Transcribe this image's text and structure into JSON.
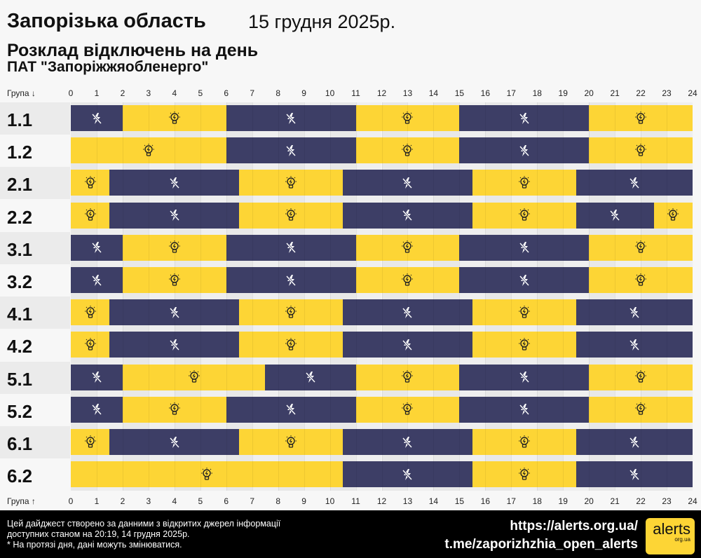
{
  "header": {
    "title": "Запорізька область",
    "date": "15 грудня 2025р.",
    "subtitle": "Розклад відключень на день",
    "company": "ПАТ \"Запоріжжяобленерго\""
  },
  "chart_data": {
    "type": "table",
    "axis_label_top": "Група ↓",
    "axis_label_bottom": "Група ↑",
    "x_ticks": [
      "0",
      "1",
      "2",
      "3",
      "4",
      "5",
      "6",
      "7",
      "8",
      "9",
      "10",
      "11",
      "12",
      "13",
      "14",
      "15",
      "16",
      "17",
      "18",
      "19",
      "20",
      "21",
      "22",
      "23",
      "24"
    ],
    "xlim": [
      0,
      24
    ],
    "colors": {
      "off": "#3d3e66",
      "on": "#fdd535"
    },
    "legend_icons": {
      "off": "lightning-slash-icon",
      "on": "lightbulb-icon"
    },
    "groups": [
      {
        "name": "1.1",
        "segments": [
          [
            "off",
            0,
            2
          ],
          [
            "on",
            2,
            6
          ],
          [
            "off",
            6,
            11
          ],
          [
            "on",
            11,
            15
          ],
          [
            "off",
            15,
            20
          ],
          [
            "on",
            20,
            24
          ]
        ]
      },
      {
        "name": "1.2",
        "segments": [
          [
            "on",
            0,
            6
          ],
          [
            "off",
            6,
            11
          ],
          [
            "on",
            11,
            15
          ],
          [
            "off",
            15,
            20
          ],
          [
            "on",
            20,
            24
          ]
        ]
      },
      {
        "name": "2.1",
        "segments": [
          [
            "on",
            0,
            1.5
          ],
          [
            "off",
            1.5,
            6.5
          ],
          [
            "on",
            6.5,
            10.5
          ],
          [
            "off",
            10.5,
            15.5
          ],
          [
            "on",
            15.5,
            19.5
          ],
          [
            "off",
            19.5,
            24
          ]
        ]
      },
      {
        "name": "2.2",
        "segments": [
          [
            "on",
            0,
            1.5
          ],
          [
            "off",
            1.5,
            6.5
          ],
          [
            "on",
            6.5,
            10.5
          ],
          [
            "off",
            10.5,
            15.5
          ],
          [
            "on",
            15.5,
            19.5
          ],
          [
            "off",
            19.5,
            22.5
          ],
          [
            "on",
            22.5,
            24
          ]
        ]
      },
      {
        "name": "3.1",
        "segments": [
          [
            "off",
            0,
            2
          ],
          [
            "on",
            2,
            6
          ],
          [
            "off",
            6,
            11
          ],
          [
            "on",
            11,
            15
          ],
          [
            "off",
            15,
            20
          ],
          [
            "on",
            20,
            24
          ]
        ]
      },
      {
        "name": "3.2",
        "segments": [
          [
            "off",
            0,
            2
          ],
          [
            "on",
            2,
            6
          ],
          [
            "off",
            6,
            11
          ],
          [
            "on",
            11,
            15
          ],
          [
            "off",
            15,
            20
          ],
          [
            "on",
            20,
            24
          ]
        ]
      },
      {
        "name": "4.1",
        "segments": [
          [
            "on",
            0,
            1.5
          ],
          [
            "off",
            1.5,
            6.5
          ],
          [
            "on",
            6.5,
            10.5
          ],
          [
            "off",
            10.5,
            15.5
          ],
          [
            "on",
            15.5,
            19.5
          ],
          [
            "off",
            19.5,
            24
          ]
        ]
      },
      {
        "name": "4.2",
        "segments": [
          [
            "on",
            0,
            1.5
          ],
          [
            "off",
            1.5,
            6.5
          ],
          [
            "on",
            6.5,
            10.5
          ],
          [
            "off",
            10.5,
            15.5
          ],
          [
            "on",
            15.5,
            19.5
          ],
          [
            "off",
            19.5,
            24
          ]
        ]
      },
      {
        "name": "5.1",
        "segments": [
          [
            "off",
            0,
            2
          ],
          [
            "on",
            2,
            7.5
          ],
          [
            "off",
            7.5,
            11
          ],
          [
            "on",
            11,
            15
          ],
          [
            "off",
            15,
            20
          ],
          [
            "on",
            20,
            24
          ]
        ]
      },
      {
        "name": "5.2",
        "segments": [
          [
            "off",
            0,
            2
          ],
          [
            "on",
            2,
            6
          ],
          [
            "off",
            6,
            11
          ],
          [
            "on",
            11,
            15
          ],
          [
            "off",
            15,
            20
          ],
          [
            "on",
            20,
            24
          ]
        ]
      },
      {
        "name": "6.1",
        "segments": [
          [
            "on",
            0,
            1.5
          ],
          [
            "off",
            1.5,
            6.5
          ],
          [
            "on",
            6.5,
            10.5
          ],
          [
            "off",
            10.5,
            15.5
          ],
          [
            "on",
            15.5,
            19.5
          ],
          [
            "off",
            19.5,
            24
          ]
        ]
      },
      {
        "name": "6.2",
        "segments": [
          [
            "on",
            0,
            10.5
          ],
          [
            "off",
            10.5,
            15.5
          ],
          [
            "on",
            15.5,
            19.5
          ],
          [
            "off",
            19.5,
            24
          ]
        ]
      }
    ]
  },
  "footer": {
    "note_line1": "Цей дайджест створено за данними з відкритих джерел інформації",
    "note_line2": "доступних станом на 20:19, 14 грудня 2025р.",
    "note_line3": "* На протязі дня, дані можуть змінюватися.",
    "link1": "https://alerts.org.ua/",
    "link2": "t.me/zaporizhzhia_open_alerts",
    "logo_text": "alerts",
    "logo_sub": "org.ua"
  }
}
